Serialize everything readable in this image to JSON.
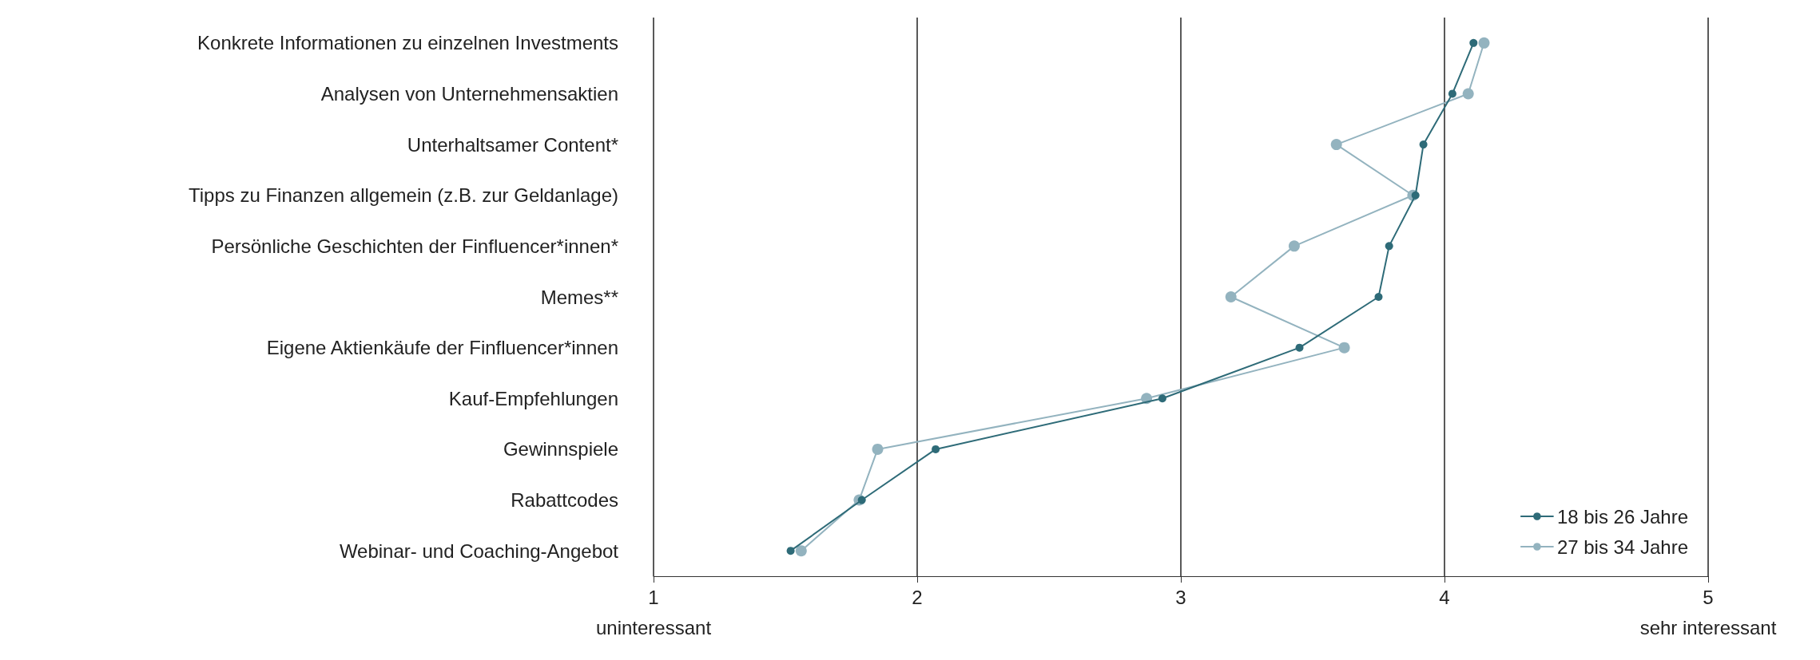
{
  "chart_data": {
    "type": "line",
    "orientation": "horizontal",
    "categories": [
      "Konkrete Informationen zu einzelnen Investments",
      "Analysen von Unternehmensaktien",
      "Unterhaltsamer Content*",
      "Tipps zu Finanzen allgemein (z.B. zur Geldanlage)",
      "Persönliche Geschichten der Finfluencer*innen*",
      "Memes**",
      "Eigene Aktienkäufe der Finfluencer*innen",
      "Kauf-Empfehlungen",
      "Gewinnspiele",
      "Rabattcodes",
      "Webinar- und Coaching-Angebot"
    ],
    "series": [
      {
        "name": "18 bis 26 Jahre",
        "color": "#2e6b78",
        "values": [
          4.11,
          4.03,
          3.92,
          3.89,
          3.79,
          3.75,
          3.45,
          2.93,
          2.07,
          1.79,
          1.52
        ]
      },
      {
        "name": "27 bis 34 Jahre",
        "color": "#93b3bf",
        "values": [
          4.15,
          4.09,
          3.59,
          3.88,
          3.43,
          3.19,
          3.62,
          2.87,
          1.85,
          1.78,
          1.56
        ]
      }
    ],
    "xlim": [
      1,
      5
    ],
    "xticks": [
      1,
      2,
      3,
      4,
      5
    ],
    "annotations": [
      "uninteressant",
      "sehr interessant"
    ],
    "grid": "x",
    "legend": "bottom right",
    "marker": "circle",
    "line_style": "solid"
  }
}
